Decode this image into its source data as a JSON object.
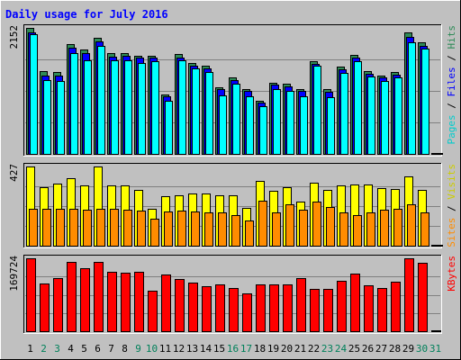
{
  "chart_data": {
    "type": "bar",
    "title": "Daily usage for July 2016",
    "categories": [
      "1",
      "2",
      "3",
      "4",
      "5",
      "6",
      "7",
      "8",
      "9",
      "10",
      "11",
      "12",
      "13",
      "14",
      "15",
      "16",
      "17",
      "18",
      "19",
      "20",
      "21",
      "22",
      "23",
      "24",
      "25",
      "26",
      "27",
      "28",
      "29",
      "30",
      "31"
    ],
    "weekend_days": [
      "2",
      "3",
      "9",
      "10",
      "16",
      "17",
      "23",
      "24",
      "30",
      "31"
    ],
    "panels": [
      {
        "id": "top",
        "ymax": 2152,
        "ymax_label": "2152",
        "side_labels": [
          "Pages",
          "Files",
          "Hits"
        ],
        "series": [
          {
            "name": "Hits",
            "color": "#2e8b57",
            "values": [
              2152,
              1410,
              1395,
              1880,
              1780,
              1990,
              1720,
              1720,
              1680,
              1670,
              1020,
              1700,
              1560,
              1510,
              1140,
              1300,
              1110,
              910,
              1220,
              1200,
              1110,
              1580,
              1100,
              1490,
              1690,
              1420,
              1340,
              1400,
              2070,
              1910,
              4
            ]
          },
          {
            "name": "Files",
            "color": "#0000ff",
            "values": [
              2080,
              1340,
              1330,
              1820,
              1720,
              1920,
              1660,
              1680,
              1640,
              1640,
              980,
              1640,
              1510,
              1460,
              1100,
              1260,
              1070,
              870,
              1180,
              1160,
              1070,
              1540,
              1060,
              1440,
              1640,
              1370,
              1300,
              1360,
              2000,
              1840,
              3
            ]
          },
          {
            "name": "Pages",
            "color": "#00ffff",
            "values": [
              2040,
              1260,
              1240,
              1720,
              1600,
              1840,
              1600,
              1600,
              1560,
              1580,
              900,
              1600,
              1460,
              1400,
              1000,
              1200,
              990,
              820,
              1100,
              1080,
              990,
              1500,
              970,
              1380,
              1580,
              1320,
              1250,
              1300,
              1910,
              1800,
              2
            ]
          }
        ]
      },
      {
        "id": "middle",
        "ymax": 427,
        "ymax_label": "427",
        "side_labels": [
          "Sites",
          "Visits"
        ],
        "series": [
          {
            "name": "Visits",
            "color": "#ffff00",
            "values": [
              427,
              315,
              336,
              365,
              325,
              427,
              325,
              325,
              300,
              200,
              265,
              270,
              280,
              280,
              270,
              270,
              205,
              350,
              295,
              315,
              240,
              340,
              300,
              325,
              330,
              330,
              310,
              305,
              375,
              300,
              5
            ]
          },
          {
            "name": "Sites",
            "color": "#ff8c00",
            "values": [
              200,
              200,
              200,
              200,
              195,
              200,
              200,
              195,
              190,
              145,
              185,
              190,
              185,
              180,
              180,
              165,
              135,
              245,
              180,
              225,
              195,
              240,
              210,
              180,
              165,
              180,
              195,
              200,
              225,
              180,
              3
            ]
          }
        ]
      },
      {
        "id": "bottom",
        "ymax": 169724,
        "ymax_label": "169724",
        "side_labels": [
          "KBytes"
        ],
        "series": [
          {
            "name": "KBytes",
            "color": "#ff0000",
            "values": [
              169724,
              112000,
              123000,
              161000,
              147000,
              161000,
              139000,
              136000,
              138000,
              95000,
              132000,
              122000,
              114000,
              104000,
              108000,
              101000,
              89000,
              110000,
              110000,
              110000,
              123000,
              98000,
              98000,
              117000,
              134000,
              107000,
              101000,
              116000,
              169724,
              159000,
              4
            ]
          }
        ]
      }
    ]
  }
}
